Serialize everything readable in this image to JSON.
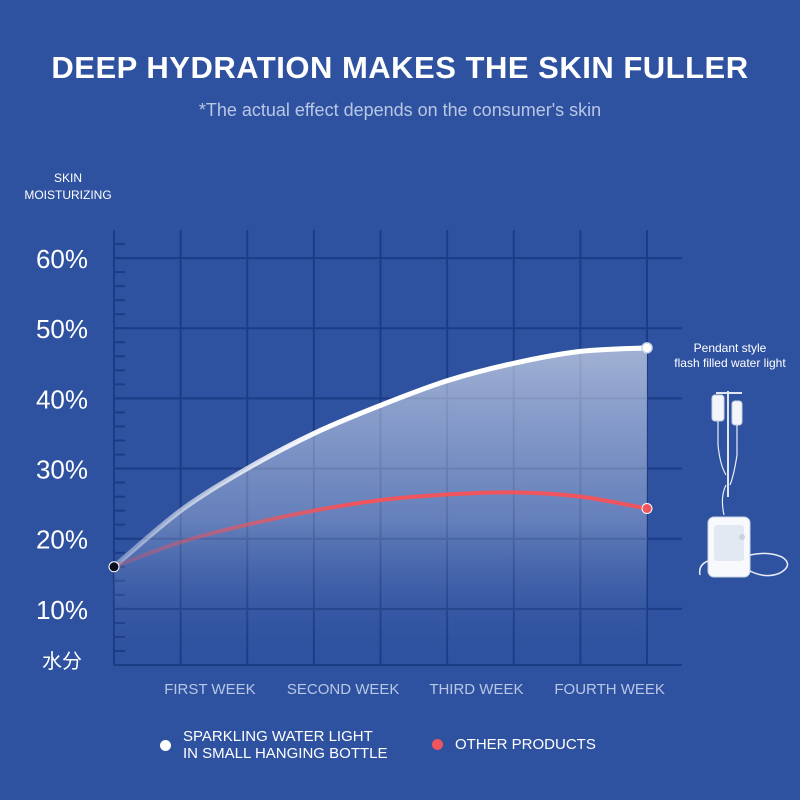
{
  "title": "DEEP HYDRATION MAKES THE SKIN FULLER",
  "subtitle": "*The actual effect depends on the consumer's skin",
  "chart_data": {
    "type": "line",
    "ylabel": "SKIN\nMOISTURIZING",
    "y_ticks": [
      {
        "value": 10,
        "label": "10%"
      },
      {
        "value": 20,
        "label": "20%"
      },
      {
        "value": 30,
        "label": "30%"
      },
      {
        "value": 40,
        "label": "40%"
      },
      {
        "value": 50,
        "label": "50%"
      },
      {
        "value": 60,
        "label": "60%"
      }
    ],
    "y_bottom_label": "水分",
    "ylim": [
      2,
      64
    ],
    "x_min": 0,
    "x_max": 4,
    "categories": [
      {
        "x": 1.2,
        "label": "FIRST WEEK"
      },
      {
        "x": 2.2,
        "label": "SECOND WEEK"
      },
      {
        "x": 3.2,
        "label": "THIRD WEEK"
      },
      {
        "x": 4.2,
        "label": "FOURTH WEEK"
      }
    ],
    "grid": true,
    "series": [
      {
        "name": "SPARKLING WATER LIGHT IN SMALL HANGING BOTTLE",
        "color": "#ffffff",
        "area_fill": true,
        "points": [
          [
            0,
            16
          ],
          [
            0.5,
            24
          ],
          [
            1,
            30
          ],
          [
            1.5,
            35
          ],
          [
            2,
            39
          ],
          [
            2.5,
            42.5
          ],
          [
            3,
            45
          ],
          [
            3.5,
            46.7
          ],
          [
            4,
            47.2
          ]
        ]
      },
      {
        "name": "OTHER PRODUCTS",
        "color": "#f0545c",
        "area_fill": false,
        "points": [
          [
            0,
            16
          ],
          [
            0.5,
            19.5
          ],
          [
            1,
            22
          ],
          [
            1.5,
            24
          ],
          [
            2,
            25.5
          ],
          [
            2.5,
            26.3
          ],
          [
            3,
            26.6
          ],
          [
            3.5,
            26
          ],
          [
            4,
            24.3
          ]
        ]
      }
    ]
  },
  "legend": {
    "items": [
      {
        "label": "SPARKLING WATER LIGHT\nIN SMALL HANGING BOTTLE",
        "color": "#ffffff"
      },
      {
        "label": "OTHER PRODUCTS",
        "color": "#f0545c"
      }
    ],
    "placement": "bottom"
  },
  "product": {
    "caption": "Pendant style\nflash filled water light",
    "icon": "hanging-bottle-device-icon"
  }
}
